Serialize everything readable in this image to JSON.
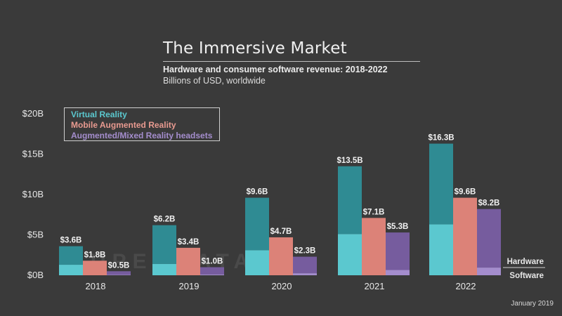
{
  "header": {
    "title": "The Immersive Market",
    "subtitle": "Hardware and consumer software revenue: 2018-2022",
    "subtitle2": "Billions of USD, worldwide"
  },
  "footer": {
    "date": "January 2019"
  },
  "watermark": "SUPERDATA",
  "colors": {
    "vr_hw": "#2f8b93",
    "vr_sw": "#5bc8cf",
    "mar": "#dc8278",
    "amr_hw": "#765c9e",
    "amr_sw": "#a48dcd",
    "text": "#e8e8e8"
  },
  "chart_data": {
    "type": "bar",
    "stacked_components": [
      "Hardware",
      "Software"
    ],
    "categories": [
      "2018",
      "2019",
      "2020",
      "2021",
      "2022"
    ],
    "ylim": [
      0,
      20
    ],
    "yticks": [
      0,
      5,
      10,
      15,
      20
    ],
    "ytick_labels": [
      "$0B",
      "$5B",
      "$10B",
      "$15B",
      "$20B"
    ],
    "legend_position": "top-left",
    "grid": false,
    "series": [
      {
        "name": "Virtual Reality",
        "key": "vr",
        "totals": [
          3.6,
          6.2,
          9.6,
          13.5,
          16.3
        ],
        "software": [
          1.3,
          1.4,
          3.1,
          5.1,
          6.3
        ],
        "labels": [
          "$3.6B",
          "$6.2B",
          "$9.6B",
          "$13.5B",
          "$16.3B"
        ]
      },
      {
        "name": "Mobile Augmented Reality",
        "key": "mar",
        "totals": [
          1.8,
          3.4,
          4.7,
          7.1,
          9.6
        ],
        "software": [
          1.8,
          3.4,
          4.7,
          7.1,
          9.6
        ],
        "labels": [
          "$1.8B",
          "$3.4B",
          "$4.7B",
          "$7.1B",
          "$9.6B"
        ]
      },
      {
        "name": "Augmented/Mixed Reality headsets",
        "key": "amr",
        "totals": [
          0.5,
          1.0,
          2.3,
          5.3,
          8.2
        ],
        "software": [
          0.05,
          0.1,
          0.25,
          0.65,
          0.95
        ],
        "labels": [
          "$0.5B",
          "$1.0B",
          "$2.3B",
          "$5.3B",
          "$8.2B"
        ]
      }
    ],
    "annotations": {
      "hardware": "Hardware",
      "software": "Software"
    }
  }
}
